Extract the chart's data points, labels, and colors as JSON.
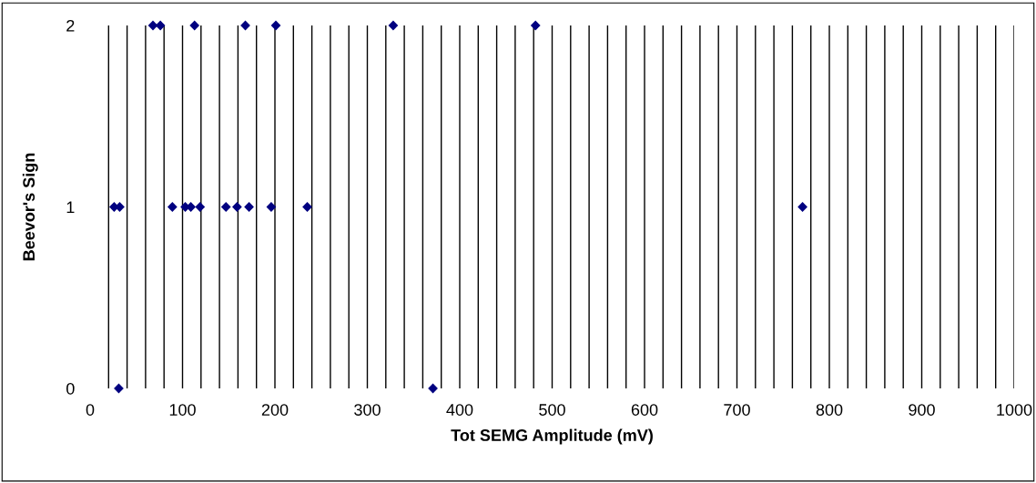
{
  "chart_data": {
    "type": "scatter",
    "xlabel": "Tot SEMG Amplitude (mV)",
    "ylabel": "Beevor's Sign",
    "x": [
      68,
      76,
      113,
      168,
      201,
      328,
      482,
      26,
      32,
      89,
      103,
      109,
      119,
      147,
      159,
      172,
      196,
      235,
      771,
      31,
      371
    ],
    "values": [
      2,
      2,
      2,
      2,
      2,
      2,
      2,
      1,
      1,
      1,
      1,
      1,
      1,
      1,
      1,
      1,
      1,
      1,
      1,
      0,
      0
    ],
    "color": "#000080",
    "marker": "diamond",
    "grid": "x",
    "xlim": [
      0,
      1000
    ],
    "ylim": [
      0,
      2
    ],
    "yticks": [
      0,
      1,
      2
    ],
    "xticks": [
      0,
      {
        "value": 20,
        "label": null
      },
      {
        "value": 40,
        "label": null
      },
      {
        "value": 60,
        "label": null
      },
      {
        "value": 80,
        "label": null
      },
      100,
      {
        "value": 120,
        "label": null
      },
      {
        "value": 140,
        "label": null
      },
      {
        "value": 160,
        "label": null
      },
      {
        "value": 180,
        "label": null
      },
      200,
      {
        "value": 220,
        "label": null
      },
      {
        "value": 240,
        "label": null
      },
      {
        "value": 260,
        "label": null
      },
      {
        "value": 280,
        "label": null
      },
      300,
      {
        "value": 320,
        "label": null
      },
      {
        "value": 340,
        "label": null
      },
      {
        "value": 360,
        "label": null
      },
      {
        "value": 380,
        "label": null
      },
      400,
      {
        "value": 420,
        "label": null
      },
      {
        "value": 440,
        "label": null
      },
      {
        "value": 460,
        "label": null
      },
      {
        "value": 480,
        "label": null
      },
      500,
      {
        "value": 520,
        "label": null
      },
      {
        "value": 540,
        "label": null
      },
      {
        "value": 560,
        "label": null
      },
      {
        "value": 580,
        "label": null
      },
      600,
      {
        "value": 620,
        "label": null
      },
      {
        "value": 640,
        "label": null
      },
      {
        "value": 660,
        "label": null
      },
      {
        "value": 680,
        "label": null
      },
      700,
      {
        "value": 720,
        "label": null
      },
      {
        "value": 740,
        "label": null
      },
      {
        "value": 760,
        "label": null
      },
      {
        "value": 780,
        "label": null
      },
      800,
      {
        "value": 820,
        "label": null
      },
      {
        "value": 840,
        "label": null
      },
      {
        "value": 860,
        "label": null
      },
      {
        "value": 880,
        "label": null
      },
      900,
      {
        "value": 920,
        "label": null
      },
      {
        "value": 940,
        "label": null
      },
      {
        "value": 960,
        "label": null
      },
      {
        "value": 980,
        "label": null
      },
      1000
    ]
  }
}
